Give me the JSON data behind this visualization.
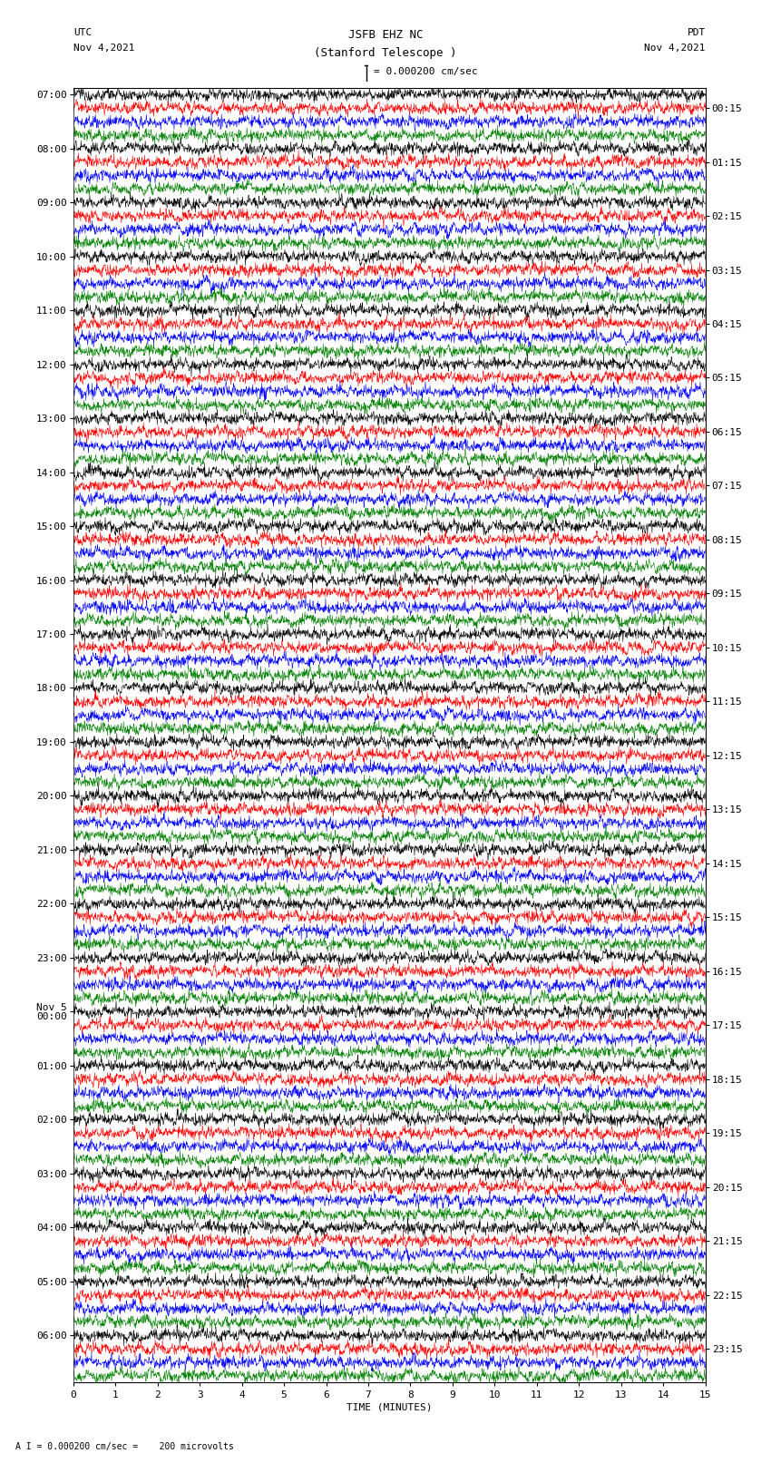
{
  "title_line1": "JSFB EHZ NC",
  "title_line2": "(Stanford Telescope )",
  "scale_label": "I = 0.000200 cm/sec",
  "bottom_label": "A I = 0.000200 cm/sec =    200 microvolts",
  "xlabel": "TIME (MINUTES)",
  "left_header": "UTC",
  "left_date": "Nov 4,2021",
  "right_header": "PDT",
  "right_date": "Nov 4,2021",
  "trace_colors": [
    "black",
    "red",
    "blue",
    "green"
  ],
  "bg_color": "white",
  "plot_bg_color": "white",
  "utc_labels": [
    "07:00",
    "08:00",
    "09:00",
    "10:00",
    "11:00",
    "12:00",
    "13:00",
    "14:00",
    "15:00",
    "16:00",
    "17:00",
    "18:00",
    "19:00",
    "20:00",
    "21:00",
    "22:00",
    "23:00",
    "Nov 5\n00:00",
    "01:00",
    "02:00",
    "03:00",
    "04:00",
    "05:00",
    "06:00"
  ],
  "pdt_labels": [
    "00:15",
    "01:15",
    "02:15",
    "03:15",
    "04:15",
    "05:15",
    "06:15",
    "07:15",
    "08:15",
    "09:15",
    "10:15",
    "11:15",
    "12:15",
    "13:15",
    "14:15",
    "15:15",
    "16:15",
    "17:15",
    "18:15",
    "19:15",
    "20:15",
    "21:15",
    "22:15",
    "23:15"
  ],
  "n_rows": 96,
  "n_points": 1800,
  "xmin": 0,
  "xmax": 15,
  "noise_amplitude": 0.28,
  "fig_width": 8.5,
  "fig_height": 16.13,
  "font_size": 8,
  "title_font_size": 9,
  "dpi": 100
}
